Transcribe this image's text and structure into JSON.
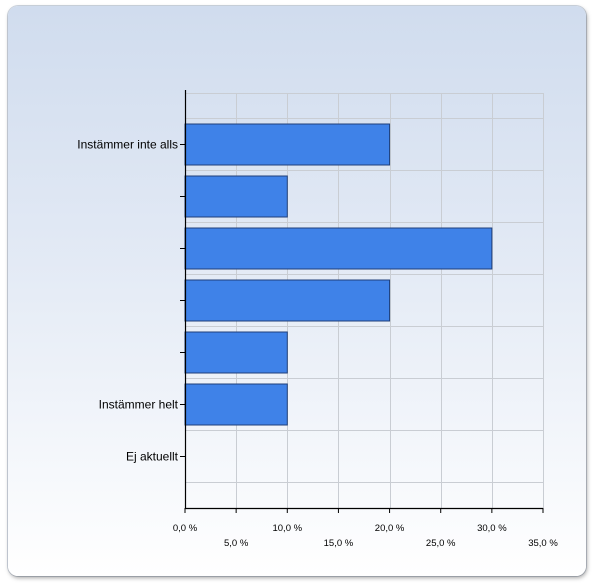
{
  "chart_data": {
    "type": "bar",
    "orientation": "horizontal",
    "categories": [
      "Instämmer inte alls",
      "",
      "",
      "",
      "",
      "Instämmer helt",
      "Ej aktuellt"
    ],
    "values": [
      20.0,
      10.0,
      30.0,
      20.0,
      10.0,
      10.0,
      0.0
    ],
    "xlim": [
      0,
      35
    ],
    "x_ticks": [
      "0,0 %",
      "5,0 %",
      "10,0 %",
      "15,0 %",
      "20,0 %",
      "25,0 %",
      "30,0 %",
      "35,0 %"
    ],
    "x_tick_values": [
      0,
      5,
      10,
      15,
      20,
      25,
      30,
      35
    ],
    "grid": true,
    "colors": {
      "bar_fill": "#3f82e8",
      "bar_stroke": "#1f3f7a",
      "grid": "#c9cdd3",
      "axis": "#000000"
    }
  }
}
